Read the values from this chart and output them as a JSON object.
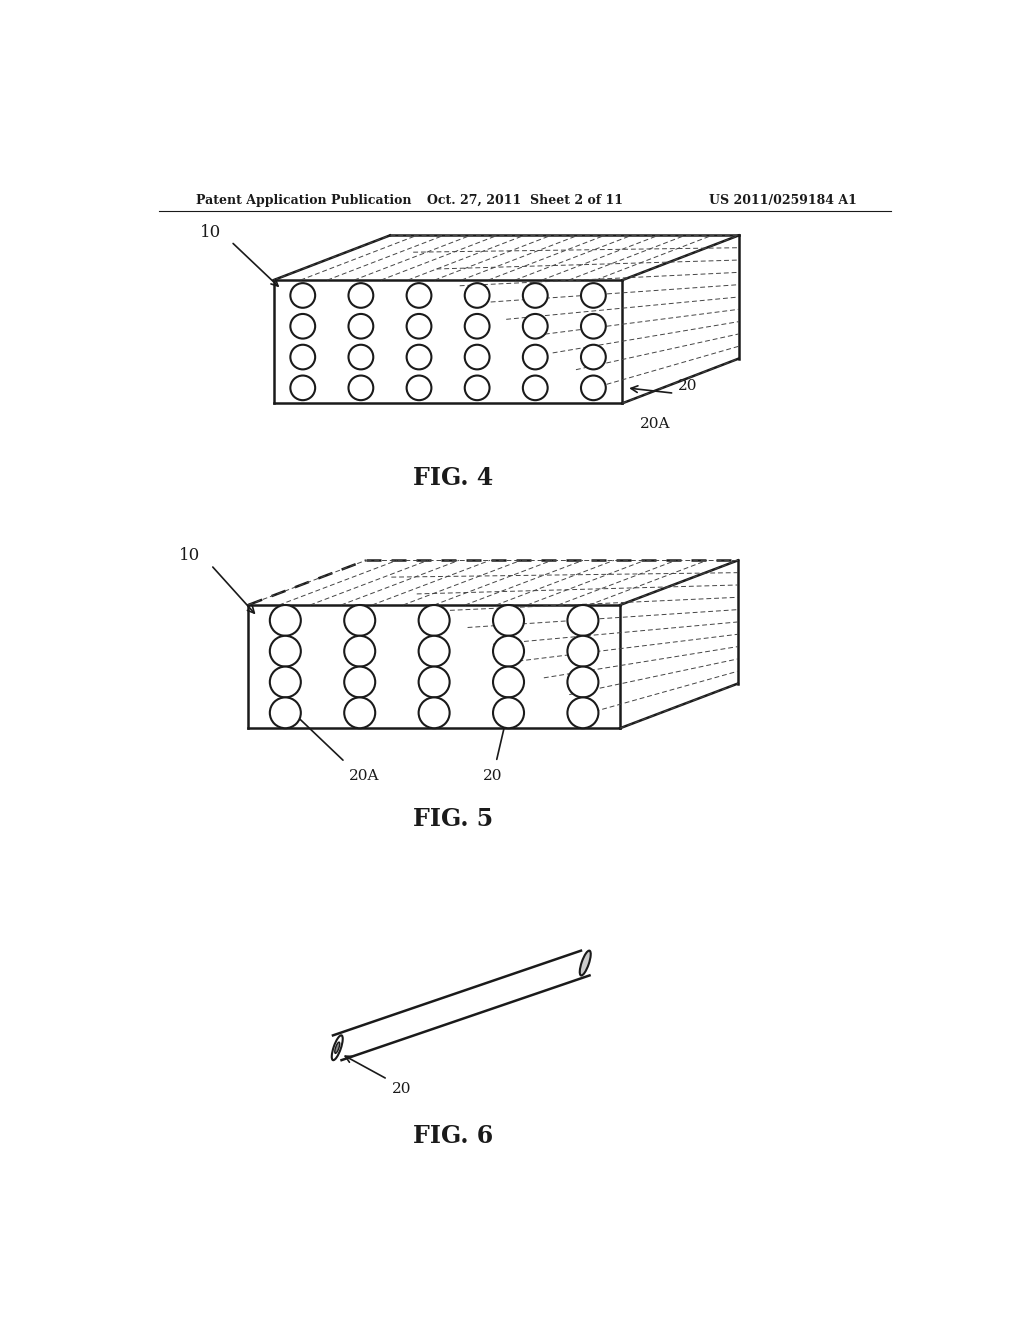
{
  "bg_color": "#ffffff",
  "line_color": "#1a1a1a",
  "header_left": "Patent Application Publication",
  "header_center": "Oct. 27, 2011  Sheet 2 of 11",
  "header_right": "US 2011/0259184 A1",
  "fig4_label": "FIG. 4",
  "fig5_label": "FIG. 5",
  "fig6_label": "FIG. 6",
  "label_10": "10",
  "label_20": "20",
  "label_20A": "20A"
}
